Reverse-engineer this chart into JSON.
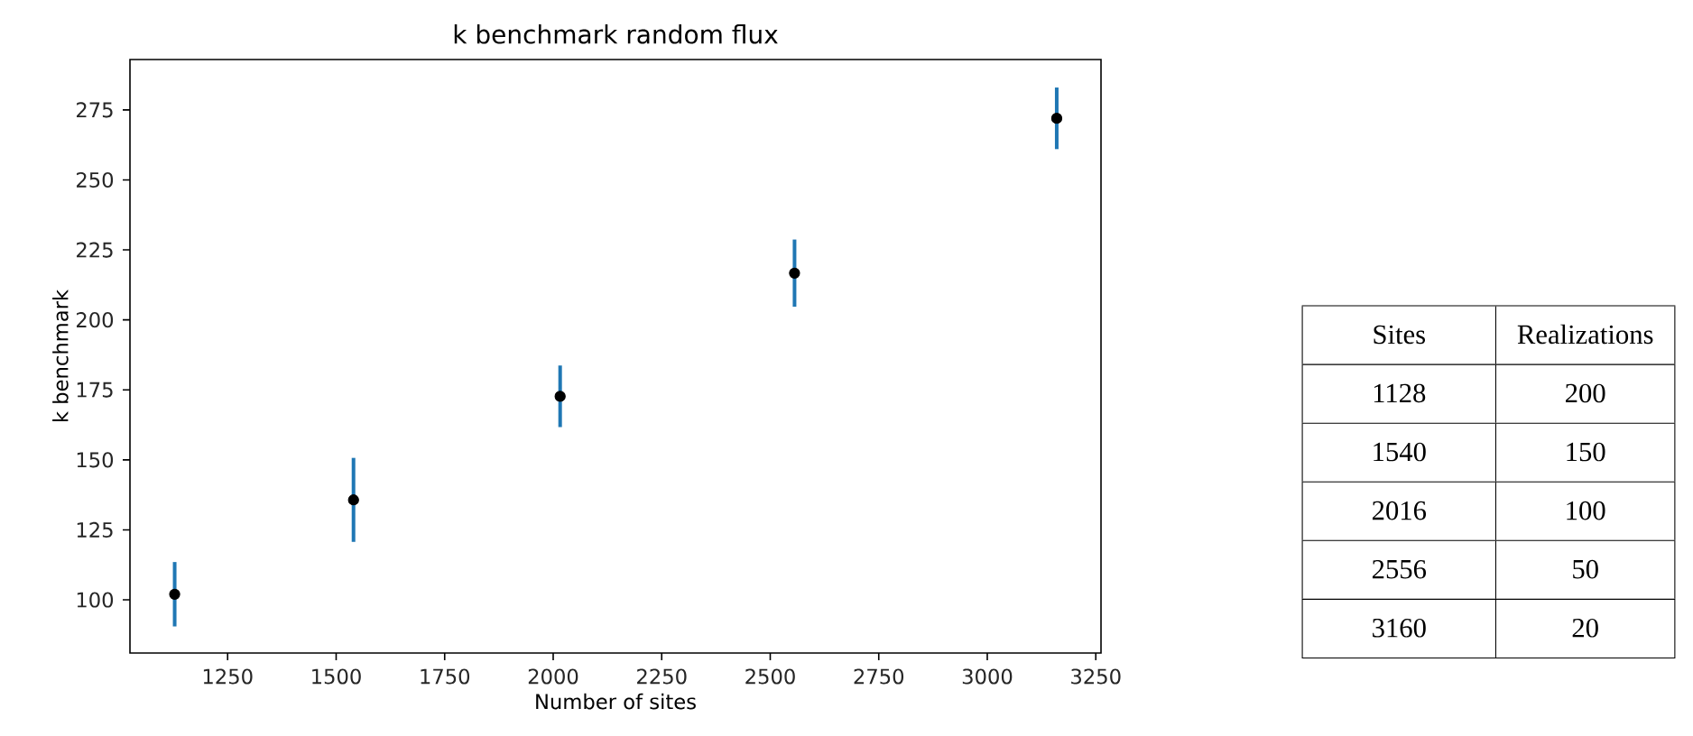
{
  "chart_data": [
    {
      "type": "scatter",
      "title": "k benchmark random flux",
      "xlabel": "Number of sites",
      "ylabel": "k benchmark",
      "x": [
        1128,
        1540,
        2016,
        2556,
        3160
      ],
      "series": [
        {
          "color": "#000000",
          "values": [
            102,
            135.7,
            172.7,
            216.7,
            272
          ],
          "errors": [
            11.5,
            15,
            11,
            12,
            11
          ]
        }
      ],
      "marker": "circle",
      "xlim": [
        1025,
        3262
      ],
      "ylim": [
        81,
        293
      ],
      "xticks": [
        1250,
        1500,
        1750,
        2000,
        2250,
        2500,
        2750,
        3000,
        3250
      ],
      "yticks": [
        100,
        125,
        150,
        175,
        200,
        225,
        250,
        275
      ]
    },
    {
      "type": "other",
      "categories": [
        "Sites",
        "Realizations"
      ],
      "cell_labels": [
        [
          "1128",
          "200"
        ],
        [
          "1540",
          "150"
        ],
        [
          "2016",
          "100"
        ],
        [
          "2556",
          "50"
        ],
        [
          "3160",
          "20"
        ]
      ]
    }
  ]
}
